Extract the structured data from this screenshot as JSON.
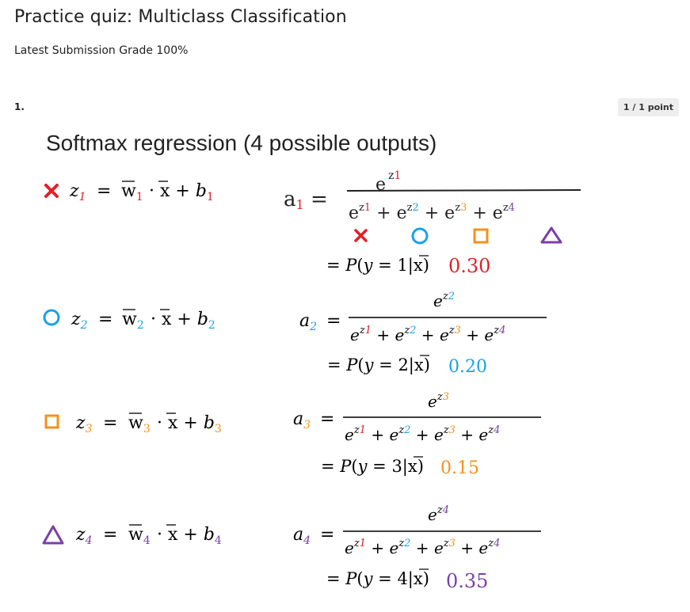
{
  "page": {
    "title": "Practice quiz: Multiclass Classification",
    "grade_text": "Latest Submission Grade 100%"
  },
  "question": {
    "number": "1.",
    "points": "1 / 1 point",
    "slide_title": "Softmax regression (4 possible outputs)",
    "rows": [
      {
        "symbol": "cross",
        "z": "z",
        "sub": "1",
        "w_sub": "1",
        "b_sub": "1",
        "a_sub": "1",
        "prob_expr": "= P(y = 1|x)",
        "value": "0.30"
      },
      {
        "symbol": "circle",
        "z": "z",
        "sub": "2",
        "w_sub": "2",
        "b_sub": "2",
        "a_sub": "2",
        "prob_expr": "= P(y = 2|x)",
        "value": "0.20"
      },
      {
        "symbol": "square",
        "z": "z",
        "sub": "3",
        "w_sub": "3",
        "b_sub": "3",
        "a_sub": "3",
        "prob_expr": "= P(y = 3|x)",
        "value": "0.15"
      },
      {
        "symbol": "triangle",
        "z": "z",
        "sub": "4",
        "w_sub": "4",
        "b_sub": "4",
        "a_sub": "4",
        "prob_expr": "= P(y = 4|x)",
        "value": "0.35"
      }
    ]
  },
  "colors": {
    "red": "#e0202a",
    "blue": "#1aa0e8",
    "orange": "#f5901e",
    "purple": "#7a3fa8"
  }
}
